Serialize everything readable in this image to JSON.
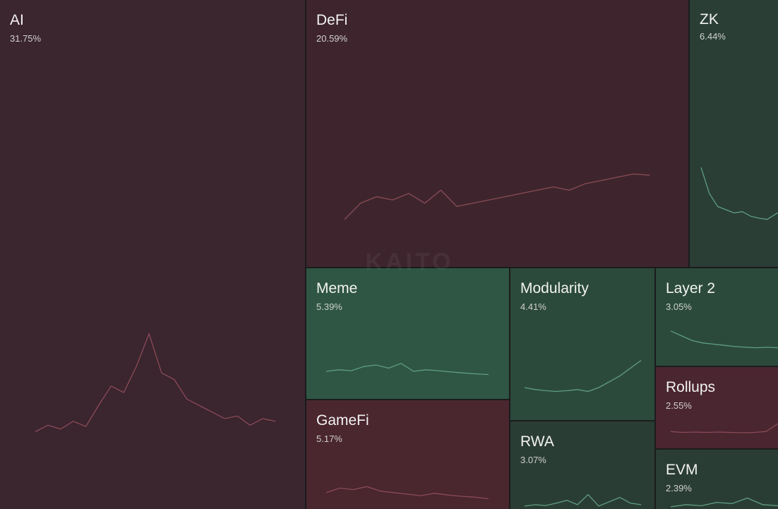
{
  "chart_data": {
    "type": "treemap",
    "watermark": "KAITO",
    "categories": [
      "AI",
      "DeFi",
      "ZK",
      "Meme",
      "GameFi",
      "Modularity",
      "RWA",
      "Layer 2",
      "Rollups",
      "EVM"
    ],
    "values": [
      31.75,
      20.59,
      6.44,
      5.39,
      5.17,
      4.41,
      3.07,
      3.05,
      2.55,
      2.39
    ],
    "value_labels": [
      "31.75%",
      "20.59%",
      "6.44%",
      "5.39%",
      "5.17%",
      "4.41%",
      "3.07%",
      "3.05%",
      "2.55%",
      "2.39%"
    ],
    "colors": [
      "#3b252f",
      "#3e252d",
      "#2a3e36",
      "#2f5644",
      "#4a262f",
      "#2c4a3c",
      "#2a3d34",
      "#2b4a3c",
      "#4a2630",
      "#2a3d34"
    ],
    "line_colors": [
      "#8a4b57",
      "#8a4b57",
      "#5f9d84",
      "#5f9d84",
      "#8a4b57",
      "#5f9d84",
      "#5f9d84",
      "#5f9d84",
      "#8a4b57",
      "#5f9d84"
    ],
    "trends": [
      [
        10,
        15,
        12,
        18,
        14,
        30,
        45,
        40,
        60,
        85,
        55,
        50,
        35,
        30,
        25,
        20,
        22,
        15,
        20,
        18
      ],
      [
        10,
        35,
        45,
        40,
        50,
        35,
        55,
        30,
        35,
        40,
        45,
        50,
        55,
        60,
        55,
        65,
        70,
        75,
        80,
        78
      ],
      [
        90,
        50,
        30,
        25,
        20,
        22,
        15,
        12,
        10,
        18,
        25
      ],
      [
        20,
        25,
        22,
        35,
        40,
        30,
        45,
        20,
        25,
        22,
        18,
        15,
        12,
        10
      ],
      [
        40,
        55,
        50,
        60,
        45,
        40,
        35,
        30,
        38,
        32,
        28,
        25,
        20
      ],
      [
        20,
        15,
        12,
        10,
        12,
        15,
        10,
        20,
        35,
        50,
        70,
        90
      ],
      [
        10,
        15,
        12,
        20,
        30,
        15,
        50,
        10,
        25,
        40,
        20,
        15
      ],
      [
        80,
        60,
        40,
        30,
        25,
        20,
        15,
        12,
        10,
        12,
        10
      ],
      [
        15,
        10,
        12,
        10,
        12,
        10,
        8,
        10,
        15,
        60
      ],
      [
        10,
        20,
        15,
        30,
        25,
        50,
        20,
        15
      ]
    ]
  }
}
